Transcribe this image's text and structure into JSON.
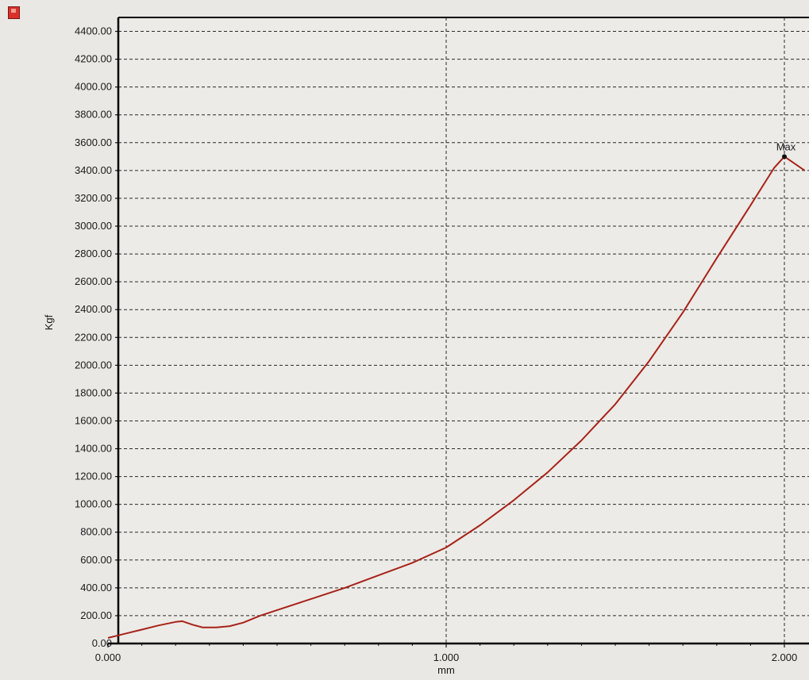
{
  "chart_data": {
    "type": "line",
    "title": "",
    "xlabel": "mm",
    "ylabel": "Kgf",
    "xlim": [
      0,
      2.07
    ],
    "ylim": [
      0,
      4500
    ],
    "x_ticks": [
      0,
      1,
      2
    ],
    "x_tick_labels": [
      "0.000",
      "1.000",
      "2.000"
    ],
    "y_ticks": [
      0,
      200,
      400,
      600,
      800,
      1000,
      1200,
      1400,
      1600,
      1800,
      2000,
      2200,
      2400,
      2600,
      2800,
      3000,
      3200,
      3400,
      3600,
      3800,
      4000,
      4200,
      4400
    ],
    "y_tick_labels": [
      "0.00",
      "200.00",
      "400.00",
      "600.00",
      "800.00",
      "1000.00",
      "1200.00",
      "1400.00",
      "1600.00",
      "1800.00",
      "2000.00",
      "2200.00",
      "2400.00",
      "2600.00",
      "2800.00",
      "3000.00",
      "3200.00",
      "3400.00",
      "3600.00",
      "3800.00",
      "4000.00",
      "4200.00",
      "4400.00"
    ],
    "grid": true,
    "series": [
      {
        "color": "#a82218",
        "x": [
          0.0,
          0.05,
          0.1,
          0.15,
          0.2,
          0.22,
          0.25,
          0.28,
          0.32,
          0.36,
          0.4,
          0.45,
          0.5,
          0.55,
          0.6,
          0.7,
          0.8,
          0.9,
          1.0,
          1.1,
          1.2,
          1.3,
          1.4,
          1.5,
          1.6,
          1.7,
          1.8,
          1.9,
          1.97,
          2.0,
          2.03,
          2.06
        ],
        "y": [
          40,
          70,
          100,
          130,
          155,
          160,
          135,
          115,
          115,
          125,
          150,
          200,
          240,
          280,
          320,
          400,
          490,
          580,
          690,
          850,
          1030,
          1230,
          1460,
          1720,
          2030,
          2380,
          2770,
          3150,
          3420,
          3500,
          3450,
          3400
        ]
      }
    ],
    "annotations": [
      {
        "text": "Max",
        "x": 2.0,
        "y": 3500
      }
    ]
  }
}
